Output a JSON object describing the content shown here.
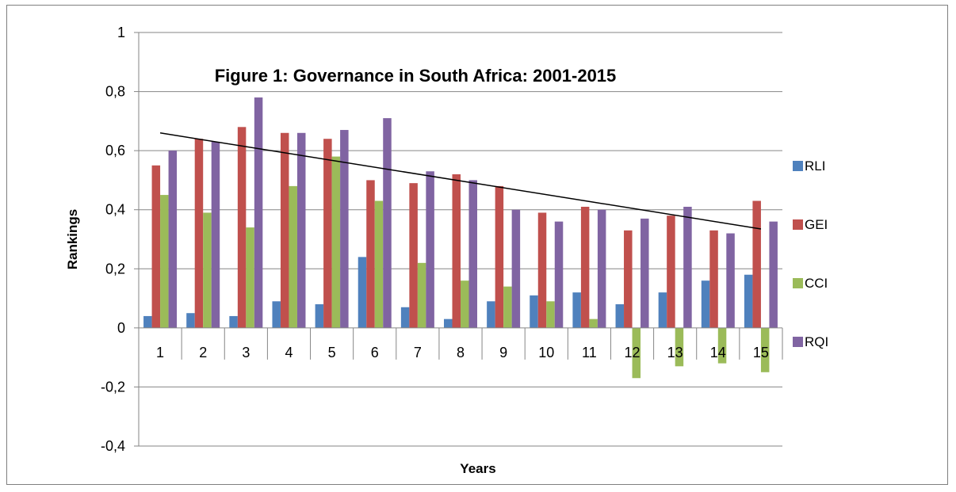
{
  "chart_data": {
    "type": "bar",
    "title": "Figure 1: Governance in South Africa: 2001-2015",
    "xlabel": "Years",
    "ylabel": "Rankings",
    "categories": [
      "1",
      "2",
      "3",
      "4",
      "5",
      "6",
      "7",
      "8",
      "9",
      "10",
      "11",
      "12",
      "13",
      "14",
      "15"
    ],
    "ylim": [
      -0.4,
      1
    ],
    "yticks": [
      -0.4,
      -0.2,
      0,
      0.2,
      0.4,
      0.6,
      0.8,
      1
    ],
    "ytick_labels": [
      "-0,4",
      "-0,2",
      "0",
      "0,2",
      "0,4",
      "0,6",
      "0,8",
      "1"
    ],
    "grid": true,
    "legend_position": "right",
    "series": [
      {
        "name": "RLI",
        "color": "#4f81bd",
        "values": [
          0.04,
          0.05,
          0.04,
          0.09,
          0.08,
          0.24,
          0.07,
          0.03,
          0.09,
          0.11,
          0.12,
          0.08,
          0.12,
          0.16,
          0.18
        ]
      },
      {
        "name": "GEI",
        "color": "#c0504d",
        "values": [
          0.55,
          0.64,
          0.68,
          0.66,
          0.64,
          0.5,
          0.49,
          0.52,
          0.48,
          0.39,
          0.41,
          0.33,
          0.38,
          0.33,
          0.43
        ]
      },
      {
        "name": "CCI",
        "color": "#9bbb59",
        "values": [
          0.45,
          0.39,
          0.34,
          0.48,
          0.58,
          0.43,
          0.22,
          0.16,
          0.14,
          0.09,
          0.03,
          -0.17,
          -0.13,
          -0.12,
          -0.15
        ]
      },
      {
        "name": "RQI",
        "color": "#8064a2",
        "values": [
          0.6,
          0.63,
          0.78,
          0.66,
          0.67,
          0.71,
          0.53,
          0.5,
          0.4,
          0.36,
          0.4,
          0.37,
          0.41,
          0.32,
          0.36
        ]
      }
    ],
    "trendline": {
      "series": "RQI",
      "start": 0.66,
      "end": 0.335
    }
  }
}
